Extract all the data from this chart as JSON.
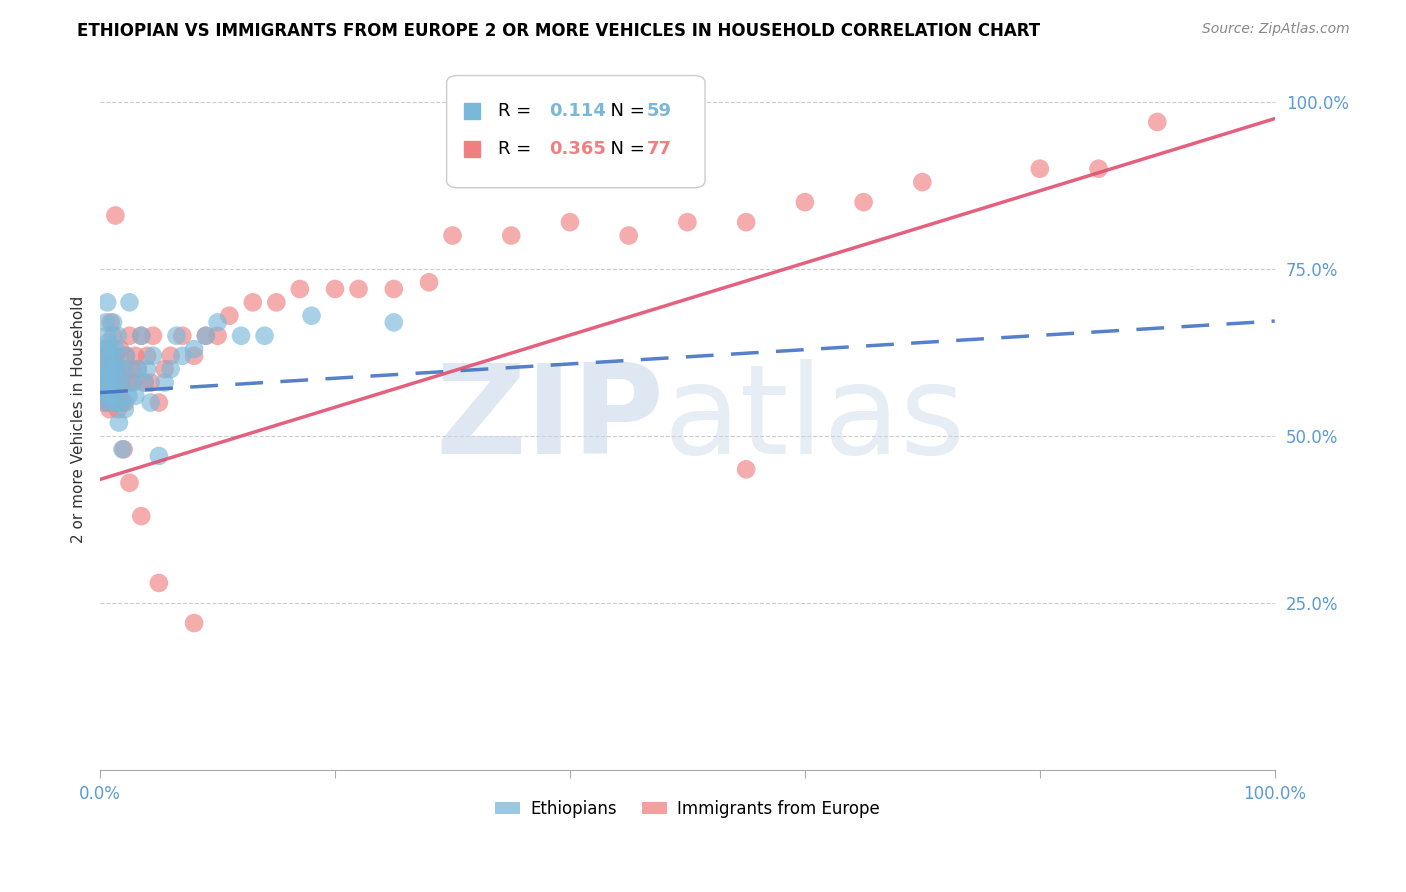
{
  "title": "ETHIOPIAN VS IMMIGRANTS FROM EUROPE 2 OR MORE VEHICLES IN HOUSEHOLD CORRELATION CHART",
  "source": "Source: ZipAtlas.com",
  "ylabel": "2 or more Vehicles in Household",
  "ytick_labels": [
    "25.0%",
    "50.0%",
    "75.0%",
    "100.0%"
  ],
  "ytick_positions": [
    0.25,
    0.5,
    0.75,
    1.0
  ],
  "legend_entries": [
    {
      "label_r": "R =  0.114",
      "label_n": "N = 59",
      "color": "#7ab8d9"
    },
    {
      "label_r": "R =  0.365",
      "label_n": "N = 77",
      "color": "#f08080"
    }
  ],
  "legend_labels": [
    "Ethiopians",
    "Immigrants from Europe"
  ],
  "blue_color": "#7ab8d9",
  "pink_color": "#f08080",
  "blue_line_color": "#4472c4",
  "pink_line_color": "#e05070",
  "ethiopian_x": [
    0.002,
    0.003,
    0.003,
    0.004,
    0.004,
    0.005,
    0.005,
    0.005,
    0.006,
    0.006,
    0.006,
    0.007,
    0.007,
    0.007,
    0.008,
    0.008,
    0.009,
    0.009,
    0.01,
    0.01,
    0.01,
    0.011,
    0.011,
    0.012,
    0.012,
    0.013,
    0.013,
    0.014,
    0.015,
    0.015,
    0.016,
    0.017,
    0.018,
    0.019,
    0.02,
    0.021,
    0.022,
    0.024,
    0.025,
    0.027,
    0.03,
    0.032,
    0.035,
    0.038,
    0.04,
    0.043,
    0.045,
    0.05,
    0.055,
    0.06,
    0.065,
    0.07,
    0.08,
    0.09,
    0.1,
    0.12,
    0.14,
    0.18,
    0.25
  ],
  "ethiopian_y": [
    0.56,
    0.58,
    0.6,
    0.62,
    0.55,
    0.63,
    0.58,
    0.67,
    0.59,
    0.65,
    0.7,
    0.6,
    0.58,
    0.64,
    0.61,
    0.56,
    0.57,
    0.63,
    0.6,
    0.55,
    0.62,
    0.58,
    0.67,
    0.56,
    0.6,
    0.58,
    0.63,
    0.55,
    0.6,
    0.65,
    0.52,
    0.58,
    0.55,
    0.48,
    0.6,
    0.54,
    0.62,
    0.56,
    0.7,
    0.58,
    0.56,
    0.6,
    0.65,
    0.58,
    0.6,
    0.55,
    0.62,
    0.47,
    0.58,
    0.6,
    0.65,
    0.62,
    0.63,
    0.65,
    0.67,
    0.65,
    0.65,
    0.68,
    0.67
  ],
  "immigrant_x": [
    0.002,
    0.003,
    0.003,
    0.004,
    0.004,
    0.005,
    0.005,
    0.006,
    0.006,
    0.007,
    0.007,
    0.008,
    0.008,
    0.009,
    0.009,
    0.01,
    0.01,
    0.011,
    0.011,
    0.012,
    0.013,
    0.013,
    0.014,
    0.015,
    0.015,
    0.016,
    0.017,
    0.018,
    0.019,
    0.02,
    0.021,
    0.022,
    0.024,
    0.025,
    0.027,
    0.028,
    0.03,
    0.032,
    0.035,
    0.038,
    0.04,
    0.043,
    0.045,
    0.05,
    0.055,
    0.06,
    0.07,
    0.08,
    0.09,
    0.1,
    0.11,
    0.13,
    0.15,
    0.17,
    0.2,
    0.22,
    0.25,
    0.28,
    0.3,
    0.35,
    0.4,
    0.45,
    0.5,
    0.55,
    0.6,
    0.65,
    0.7,
    0.8,
    0.85,
    0.9,
    0.013,
    0.02,
    0.025,
    0.035,
    0.05,
    0.08,
    0.55
  ],
  "immigrant_y": [
    0.58,
    0.6,
    0.56,
    0.62,
    0.55,
    0.63,
    0.58,
    0.56,
    0.6,
    0.55,
    0.62,
    0.58,
    0.54,
    0.6,
    0.67,
    0.55,
    0.62,
    0.58,
    0.65,
    0.6,
    0.55,
    0.62,
    0.58,
    0.54,
    0.6,
    0.56,
    0.63,
    0.58,
    0.55,
    0.6,
    0.55,
    0.62,
    0.58,
    0.65,
    0.6,
    0.58,
    0.62,
    0.6,
    0.65,
    0.58,
    0.62,
    0.58,
    0.65,
    0.55,
    0.6,
    0.62,
    0.65,
    0.62,
    0.65,
    0.65,
    0.68,
    0.7,
    0.7,
    0.72,
    0.72,
    0.72,
    0.72,
    0.73,
    0.8,
    0.8,
    0.82,
    0.8,
    0.82,
    0.82,
    0.85,
    0.85,
    0.88,
    0.9,
    0.9,
    0.97,
    0.83,
    0.48,
    0.43,
    0.38,
    0.28,
    0.22,
    0.45
  ],
  "blue_line": {
    "x0": 0.0,
    "x1": 1.0,
    "y0": 0.565,
    "y1": 0.672
  },
  "pink_line": {
    "x0": 0.0,
    "x1": 1.0,
    "y0": 0.435,
    "y1": 0.975
  },
  "xlim": [
    0.0,
    1.0
  ],
  "ylim": [
    0.0,
    1.05
  ],
  "xtick_positions": [
    0.0,
    0.2,
    0.4,
    0.6,
    0.8,
    1.0
  ]
}
